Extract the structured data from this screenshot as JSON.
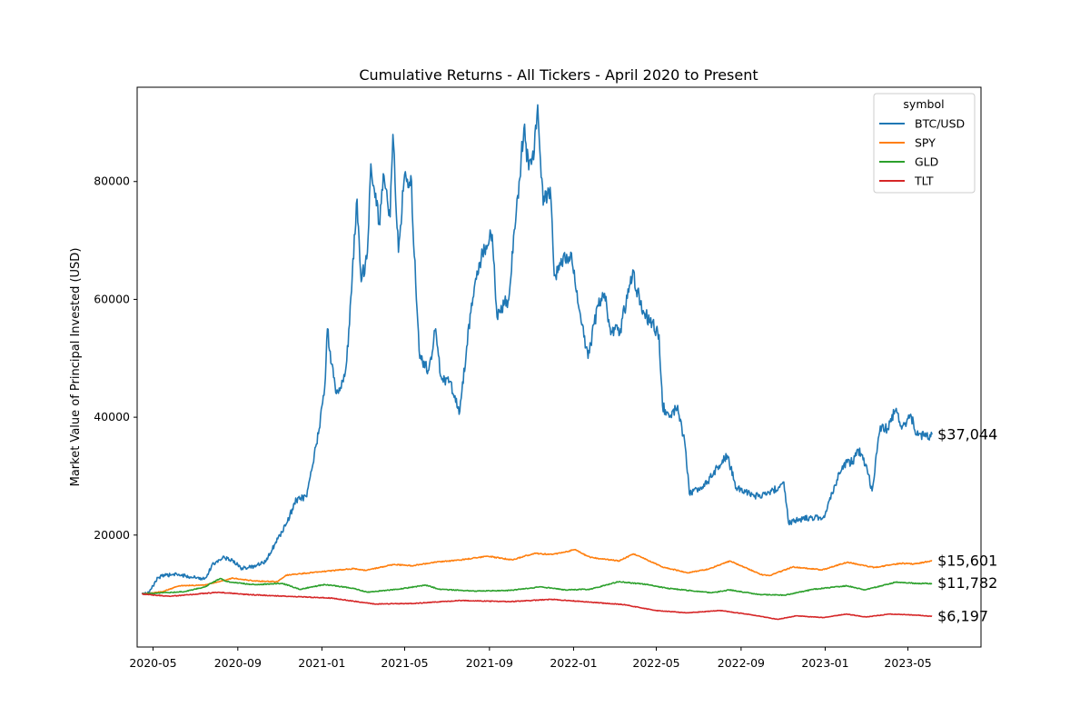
{
  "chart_data": {
    "type": "line",
    "title": "Cumulative Returns - All Tickers - April 2020 to Present",
    "xlabel": "",
    "ylabel": "Market Value of Principal Invested (USD)",
    "xlim": [
      "2020-04-08",
      "2023-08-15"
    ],
    "ylim": [
      1000,
      96000
    ],
    "y_ticks": [
      20000,
      40000,
      60000,
      80000
    ],
    "x_ticks": [
      "2020-05",
      "2020-09",
      "2021-01",
      "2021-05",
      "2021-09",
      "2022-01",
      "2022-05",
      "2022-09",
      "2023-01",
      "2023-05"
    ],
    "legend": {
      "title": "symbol",
      "position": "top-right"
    },
    "series": [
      {
        "name": "BTC/USD",
        "color": "#1f77b4",
        "end_label": "$37,044",
        "points": [
          [
            "2020-04-15",
            10000
          ],
          [
            "2020-04-25",
            10200
          ],
          [
            "2020-05-08",
            12800
          ],
          [
            "2020-05-20",
            13200
          ],
          [
            "2020-06-05",
            13300
          ],
          [
            "2020-06-25",
            12900
          ],
          [
            "2020-07-15",
            12600
          ],
          [
            "2020-07-28",
            15200
          ],
          [
            "2020-08-10",
            16200
          ],
          [
            "2020-08-25",
            15700
          ],
          [
            "2020-09-05",
            14400
          ],
          [
            "2020-09-25",
            14600
          ],
          [
            "2020-10-12",
            15600
          ],
          [
            "2020-10-25",
            18500
          ],
          [
            "2020-11-10",
            21800
          ],
          [
            "2020-11-25",
            26000
          ],
          [
            "2020-12-10",
            26500
          ],
          [
            "2020-12-18",
            31500
          ],
          [
            "2020-12-28",
            38000
          ],
          [
            "2021-01-05",
            45000
          ],
          [
            "2021-01-09",
            55000
          ],
          [
            "2021-01-15",
            49000
          ],
          [
            "2021-01-22",
            44000
          ],
          [
            "2021-02-01",
            46000
          ],
          [
            "2021-02-08",
            52000
          ],
          [
            "2021-02-14",
            64000
          ],
          [
            "2021-02-21",
            77000
          ],
          [
            "2021-02-27",
            63000
          ],
          [
            "2021-03-08",
            68000
          ],
          [
            "2021-03-13",
            83000
          ],
          [
            "2021-03-20",
            78000
          ],
          [
            "2021-03-25",
            73000
          ],
          [
            "2021-04-01",
            81000
          ],
          [
            "2021-04-10",
            74000
          ],
          [
            "2021-04-14",
            88000
          ],
          [
            "2021-04-22",
            68000
          ],
          [
            "2021-04-30",
            80000
          ],
          [
            "2021-05-10",
            81000
          ],
          [
            "2021-05-18",
            60000
          ],
          [
            "2021-05-23",
            50000
          ],
          [
            "2021-06-05",
            48000
          ],
          [
            "2021-06-15",
            55000
          ],
          [
            "2021-06-22",
            47000
          ],
          [
            "2021-07-05",
            46000
          ],
          [
            "2021-07-20",
            41000
          ],
          [
            "2021-07-30",
            52000
          ],
          [
            "2021-08-10",
            62000
          ],
          [
            "2021-08-22",
            68000
          ],
          [
            "2021-09-05",
            71000
          ],
          [
            "2021-09-12",
            57000
          ],
          [
            "2021-09-22",
            59000
          ],
          [
            "2021-09-29",
            60000
          ],
          [
            "2021-10-08",
            72000
          ],
          [
            "2021-10-14",
            80000
          ],
          [
            "2021-10-21",
            89000
          ],
          [
            "2021-10-28",
            82000
          ],
          [
            "2021-11-05",
            85000
          ],
          [
            "2021-11-10",
            93000
          ],
          [
            "2021-11-18",
            76000
          ],
          [
            "2021-11-28",
            79000
          ],
          [
            "2021-12-04",
            64000
          ],
          [
            "2021-12-15",
            66000
          ],
          [
            "2021-12-28",
            68000
          ],
          [
            "2022-01-08",
            59000
          ],
          [
            "2022-01-22",
            50000
          ],
          [
            "2022-02-05",
            59000
          ],
          [
            "2022-02-15",
            61000
          ],
          [
            "2022-02-24",
            54000
          ],
          [
            "2022-03-10",
            55000
          ],
          [
            "2022-03-28",
            65000
          ],
          [
            "2022-04-10",
            58000
          ],
          [
            "2022-04-25",
            56000
          ],
          [
            "2022-05-05",
            54000
          ],
          [
            "2022-05-10",
            42000
          ],
          [
            "2022-05-20",
            40000
          ],
          [
            "2022-06-01",
            42000
          ],
          [
            "2022-06-12",
            35000
          ],
          [
            "2022-06-18",
            27000
          ],
          [
            "2022-07-01",
            28000
          ],
          [
            "2022-07-15",
            29000
          ],
          [
            "2022-07-28",
            31500
          ],
          [
            "2022-08-12",
            33500
          ],
          [
            "2022-08-25",
            28000
          ],
          [
            "2022-09-08",
            27500
          ],
          [
            "2022-09-20",
            26500
          ],
          [
            "2022-10-05",
            27000
          ],
          [
            "2022-10-25",
            28000
          ],
          [
            "2022-11-02",
            29000
          ],
          [
            "2022-11-09",
            22000
          ],
          [
            "2022-11-20",
            22500
          ],
          [
            "2022-12-10",
            23000
          ],
          [
            "2022-12-31",
            23000
          ],
          [
            "2023-01-15",
            28500
          ],
          [
            "2023-01-28",
            32000
          ],
          [
            "2023-02-10",
            32500
          ],
          [
            "2023-02-18",
            34500
          ],
          [
            "2023-03-01",
            32000
          ],
          [
            "2023-03-10",
            27500
          ],
          [
            "2023-03-17",
            34000
          ],
          [
            "2023-03-22",
            38500
          ],
          [
            "2023-04-01",
            38000
          ],
          [
            "2023-04-14",
            41500
          ],
          [
            "2023-04-22",
            38000
          ],
          [
            "2023-05-05",
            40500
          ],
          [
            "2023-05-14",
            37000
          ],
          [
            "2023-05-25",
            36800
          ],
          [
            "2023-06-05",
            37044
          ]
        ]
      },
      {
        "name": "SPY",
        "color": "#ff7f0e",
        "end_label": "$15,601",
        "points": [
          [
            "2020-04-15",
            10000
          ],
          [
            "2020-05-15",
            10400
          ],
          [
            "2020-06-08",
            11400
          ],
          [
            "2020-07-15",
            11500
          ],
          [
            "2020-08-25",
            12700
          ],
          [
            "2020-09-25",
            12200
          ],
          [
            "2020-10-28",
            12100
          ],
          [
            "2020-11-10",
            13200
          ],
          [
            "2021-01-01",
            13800
          ],
          [
            "2021-02-15",
            14300
          ],
          [
            "2021-03-05",
            14000
          ],
          [
            "2021-04-15",
            15000
          ],
          [
            "2021-05-12",
            14800
          ],
          [
            "2021-06-15",
            15400
          ],
          [
            "2021-07-15",
            15700
          ],
          [
            "2021-08-30",
            16400
          ],
          [
            "2021-10-04",
            15800
          ],
          [
            "2021-11-05",
            16900
          ],
          [
            "2021-12-01",
            16700
          ],
          [
            "2022-01-03",
            17500
          ],
          [
            "2022-01-25",
            16200
          ],
          [
            "2022-03-08",
            15600
          ],
          [
            "2022-03-29",
            16800
          ],
          [
            "2022-05-10",
            14600
          ],
          [
            "2022-06-16",
            13600
          ],
          [
            "2022-07-15",
            14200
          ],
          [
            "2022-08-16",
            15600
          ],
          [
            "2022-09-30",
            13300
          ],
          [
            "2022-10-12",
            13100
          ],
          [
            "2022-11-15",
            14600
          ],
          [
            "2022-12-28",
            14100
          ],
          [
            "2023-02-02",
            15400
          ],
          [
            "2023-03-13",
            14500
          ],
          [
            "2023-04-20",
            15200
          ],
          [
            "2023-05-10",
            15100
          ],
          [
            "2023-06-05",
            15601
          ]
        ]
      },
      {
        "name": "GLD",
        "color": "#2ca02c",
        "end_label": "$11,782",
        "points": [
          [
            "2020-04-15",
            10000
          ],
          [
            "2020-05-15",
            10200
          ],
          [
            "2020-06-15",
            10400
          ],
          [
            "2020-07-15",
            11200
          ],
          [
            "2020-08-06",
            12600
          ],
          [
            "2020-08-20",
            12000
          ],
          [
            "2020-09-25",
            11600
          ],
          [
            "2020-11-05",
            11800
          ],
          [
            "2020-11-30",
            10800
          ],
          [
            "2021-01-05",
            11600
          ],
          [
            "2021-02-15",
            11000
          ],
          [
            "2021-03-08",
            10300
          ],
          [
            "2021-04-20",
            10800
          ],
          [
            "2021-06-01",
            11500
          ],
          [
            "2021-06-20",
            10800
          ],
          [
            "2021-08-10",
            10500
          ],
          [
            "2021-09-30",
            10600
          ],
          [
            "2021-11-15",
            11200
          ],
          [
            "2021-12-20",
            10700
          ],
          [
            "2022-01-25",
            10800
          ],
          [
            "2022-03-08",
            12100
          ],
          [
            "2022-04-18",
            11600
          ],
          [
            "2022-05-15",
            11000
          ],
          [
            "2022-07-20",
            10200
          ],
          [
            "2022-08-15",
            10700
          ],
          [
            "2022-09-28",
            9900
          ],
          [
            "2022-11-03",
            9800
          ],
          [
            "2022-12-15",
            10800
          ],
          [
            "2023-02-01",
            11400
          ],
          [
            "2023-02-28",
            10700
          ],
          [
            "2023-04-13",
            12000
          ],
          [
            "2023-05-15",
            11800
          ],
          [
            "2023-06-05",
            11782
          ]
        ]
      },
      {
        "name": "TLT",
        "color": "#d62728",
        "end_label": "$6,197",
        "points": [
          [
            "2020-04-15",
            10000
          ],
          [
            "2020-05-25",
            9600
          ],
          [
            "2020-08-04",
            10300
          ],
          [
            "2020-09-15",
            9900
          ],
          [
            "2020-11-15",
            9600
          ],
          [
            "2021-01-15",
            9300
          ],
          [
            "2021-03-18",
            8300
          ],
          [
            "2021-05-15",
            8400
          ],
          [
            "2021-07-20",
            8900
          ],
          [
            "2021-09-30",
            8700
          ],
          [
            "2021-12-01",
            9100
          ],
          [
            "2022-01-15",
            8700
          ],
          [
            "2022-03-15",
            8200
          ],
          [
            "2022-04-30",
            7200
          ],
          [
            "2022-06-15",
            6800
          ],
          [
            "2022-08-01",
            7200
          ],
          [
            "2022-09-15",
            6500
          ],
          [
            "2022-10-24",
            5700
          ],
          [
            "2022-11-20",
            6300
          ],
          [
            "2022-12-30",
            6000
          ],
          [
            "2023-02-01",
            6600
          ],
          [
            "2023-03-01",
            6100
          ],
          [
            "2023-04-05",
            6600
          ],
          [
            "2023-05-15",
            6400
          ],
          [
            "2023-06-05",
            6197
          ]
        ]
      }
    ]
  }
}
